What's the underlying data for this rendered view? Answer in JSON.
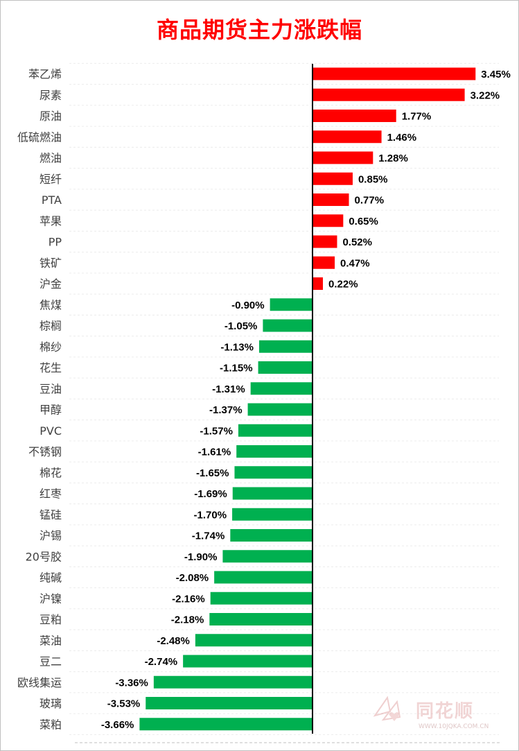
{
  "title": "商品期货主力涨跌幅",
  "watermark": {
    "brand": "同花顺",
    "url": "WWW.10JQKA.COM.CN"
  },
  "colors": {
    "up": "#ff0000",
    "down": "#00b050",
    "title": "#ff0000",
    "axis": "#000000"
  },
  "chart_data": {
    "type": "bar",
    "orientation": "horizontal",
    "title": "商品期货主力涨跌幅",
    "categories": [
      "苯乙烯",
      "尿素",
      "原油",
      "低硫燃油",
      "燃油",
      "短纤",
      "PTA",
      "苹果",
      "PP",
      "铁矿",
      "沪金",
      "焦煤",
      "棕榈",
      "棉纱",
      "花生",
      "豆油",
      "甲醇",
      "PVC",
      "不锈钢",
      "棉花",
      "红枣",
      "锰硅",
      "沪锡",
      "20号胶",
      "纯碱",
      "沪镍",
      "豆粕",
      "菜油",
      "豆二",
      "欧线集运",
      "玻璃",
      "菜粕"
    ],
    "values": [
      3.45,
      3.22,
      1.77,
      1.46,
      1.28,
      0.85,
      0.77,
      0.65,
      0.52,
      0.47,
      0.22,
      -0.9,
      -1.05,
      -1.13,
      -1.15,
      -1.31,
      -1.37,
      -1.57,
      -1.61,
      -1.65,
      -1.69,
      -1.7,
      -1.74,
      -1.9,
      -2.08,
      -2.16,
      -2.18,
      -2.48,
      -2.74,
      -3.36,
      -3.53,
      -3.66
    ],
    "value_labels": [
      "3.45%",
      "3.22%",
      "1.77%",
      "1.46%",
      "1.28%",
      "0.85%",
      "0.77%",
      "0.65%",
      "0.52%",
      "0.47%",
      "0.22%",
      "-0.90%",
      "-1.05%",
      "-1.13%",
      "-1.15%",
      "-1.31%",
      "-1.37%",
      "-1.57%",
      "-1.61%",
      "-1.65%",
      "-1.69%",
      "-1.70%",
      "-1.74%",
      "-1.90%",
      "-2.08%",
      "-2.16%",
      "-2.18%",
      "-2.48%",
      "-2.74%",
      "-3.36%",
      "-3.53%",
      "-3.66%"
    ],
    "xlim": [
      -3.66,
      3.45
    ],
    "grid": false,
    "legend": "none"
  }
}
